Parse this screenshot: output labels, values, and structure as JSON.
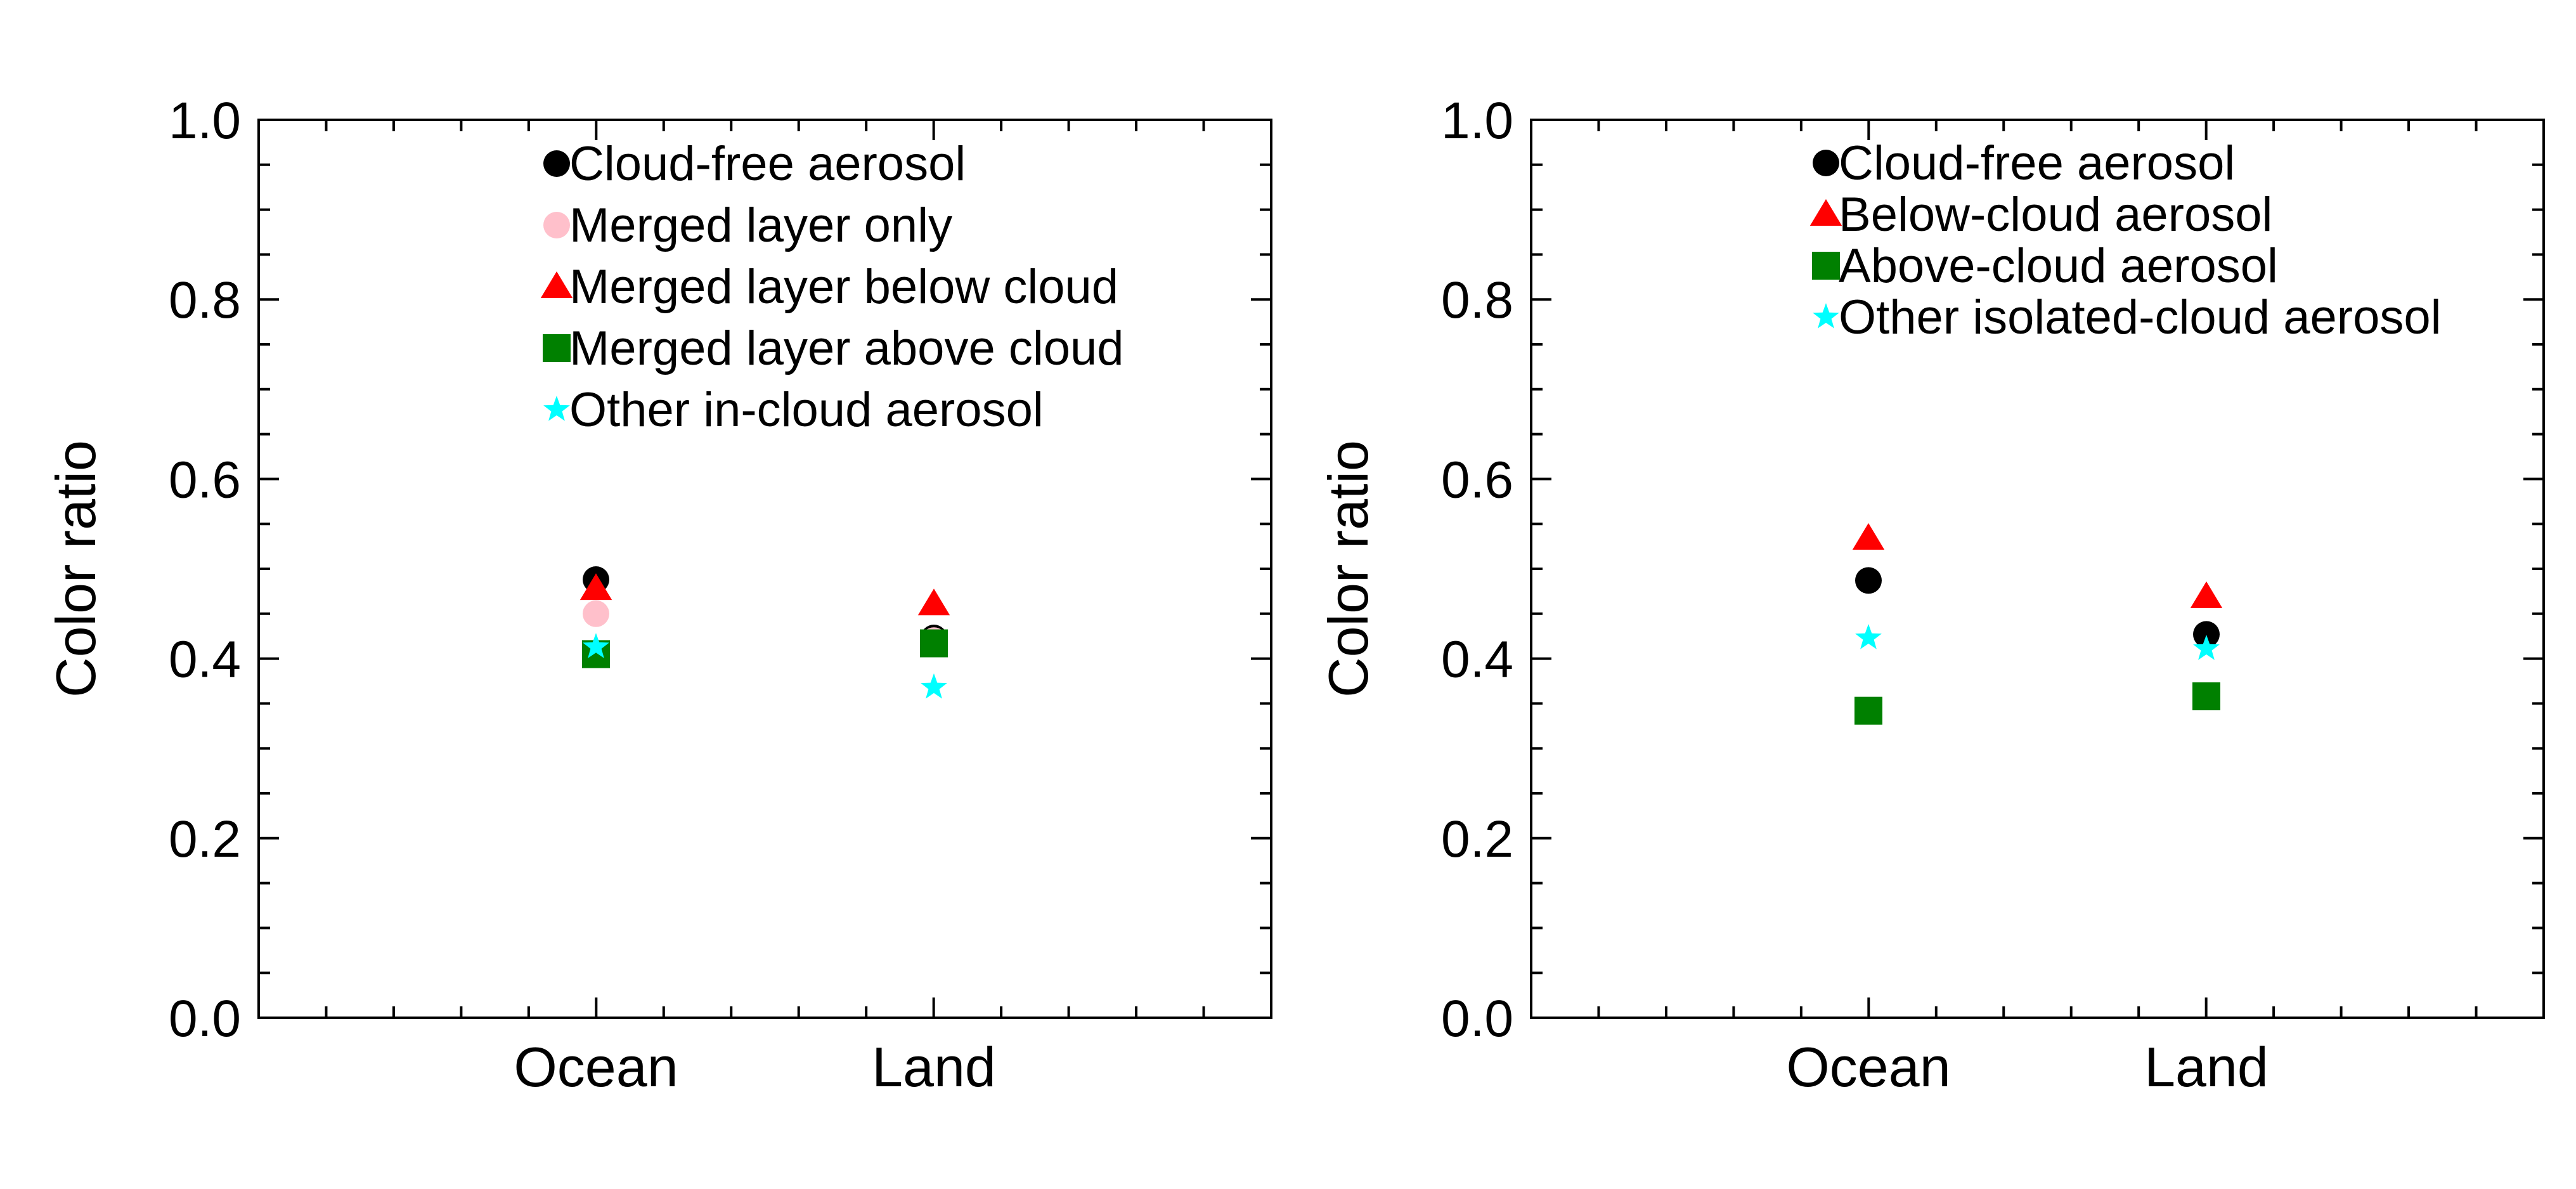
{
  "chart_data": [
    {
      "type": "scatter",
      "categories": [
        "Ocean",
        "Land"
      ],
      "ylabel": "Color ratio",
      "ylim": [
        0.0,
        1.0
      ],
      "yticks": [
        "0.0",
        "0.2",
        "0.4",
        "0.6",
        "0.8",
        "1.0"
      ],
      "legend_position": "top",
      "series": [
        {
          "name": "Cloud-free aerosol",
          "marker": "circle",
          "color": "#000000",
          "values": [
            0.488,
            0.423
          ]
        },
        {
          "name": "Merged layer only",
          "marker": "circle",
          "color": "#ffc0cb",
          "values": [
            0.45,
            0.42
          ]
        },
        {
          "name": "Merged layer below cloud",
          "marker": "triangle",
          "color": "#ff0000",
          "values": [
            0.478,
            0.461
          ]
        },
        {
          "name": "Merged layer above cloud",
          "marker": "square",
          "color": "#008000",
          "values": [
            0.405,
            0.417
          ]
        },
        {
          "name": "Other in-cloud aerosol",
          "marker": "star",
          "color": "#00ffff",
          "values": [
            0.413,
            0.368
          ]
        }
      ]
    },
    {
      "type": "scatter",
      "categories": [
        "Ocean",
        "Land"
      ],
      "ylabel": "Color ratio",
      "ylim": [
        0.0,
        1.0
      ],
      "yticks": [
        "0.0",
        "0.2",
        "0.4",
        "0.6",
        "0.8",
        "1.0"
      ],
      "legend_position": "top",
      "series": [
        {
          "name": "Cloud-free aerosol",
          "marker": "circle",
          "color": "#000000",
          "values": [
            0.487,
            0.427
          ]
        },
        {
          "name": "Below-cloud aerosol",
          "marker": "triangle",
          "color": "#ff0000",
          "values": [
            0.534,
            0.469
          ]
        },
        {
          "name": "Above-cloud aerosol",
          "marker": "square",
          "color": "#008000",
          "values": [
            0.342,
            0.358
          ]
        },
        {
          "name": "Other isolated-cloud aerosol",
          "marker": "star",
          "color": "#00ffff",
          "values": [
            0.423,
            0.411
          ]
        }
      ]
    }
  ]
}
